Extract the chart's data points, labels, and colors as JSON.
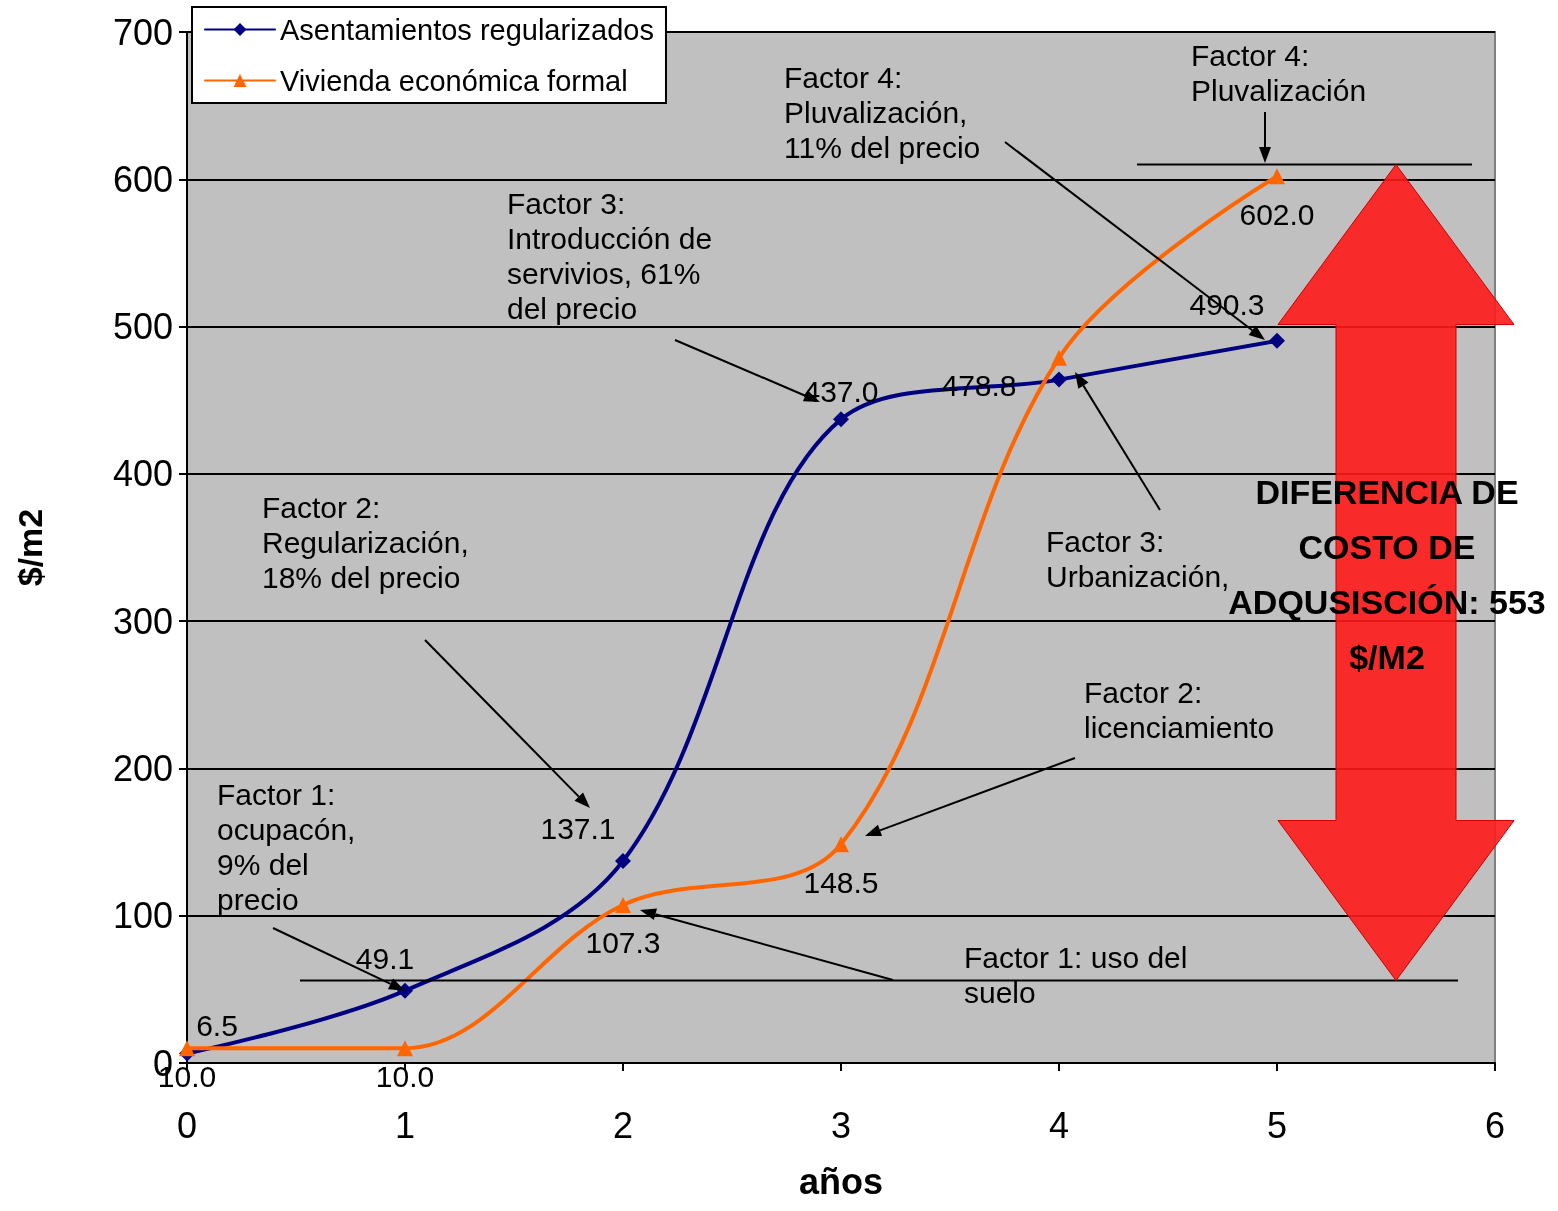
{
  "chart_data": {
    "type": "line",
    "xlabel": "años",
    "ylabel": "$/m2",
    "x": [
      0,
      1,
      2,
      3,
      4,
      5
    ],
    "series": [
      {
        "name": "Asentamientos regularizados",
        "color": "#000080",
        "marker": "diamond",
        "values": [
          6.5,
          49.1,
          137.1,
          437.0,
          464,
          490.3
        ],
        "value_labels": [
          "6.5",
          "49.1",
          "137.1",
          "437.0",
          null,
          "490.3"
        ]
      },
      {
        "name": "Vivienda económica formal",
        "color": "#ff6600",
        "marker": "triangle",
        "values": [
          10.0,
          10.0,
          107.3,
          148.5,
          478.8,
          602.0
        ],
        "value_labels": [
          "10.0",
          "10.0",
          "107.3",
          "148.5",
          "478.8",
          "602.0"
        ]
      }
    ],
    "xlim": [
      0,
      6
    ],
    "xticks": [
      0,
      1,
      2,
      3,
      4,
      5,
      6
    ],
    "ylim": [
      0,
      700
    ],
    "yticks": [
      0,
      100,
      200,
      300,
      400,
      500,
      600,
      700
    ],
    "grid": "y",
    "legend": "top left",
    "ref_lines": [
      {
        "axis": "y",
        "value": 56,
        "label": null,
        "color": "#000000"
      },
      {
        "axis": "y",
        "value": 610,
        "label": null,
        "color": "#000000"
      }
    ],
    "annotations": [
      {
        "text": "Factor 1: ocupacón, 9% del precio",
        "x": 1,
        "y": 49.1
      },
      "Factor 2: Regularización, 18% del precio",
      "Factor 3: Introducción de servivios, 61% del precio",
      "Factor 4: Pluvalización, 11% del precio",
      "Factor 1: uso del suelo",
      "Factor 2: licenciamiento",
      "Factor 3: Urbanización,",
      "Factor 4: Pluvalización",
      "DIFERENCIA DE COSTO DE ADQUSISCIÓN: 553 $/M2"
    ]
  }
}
